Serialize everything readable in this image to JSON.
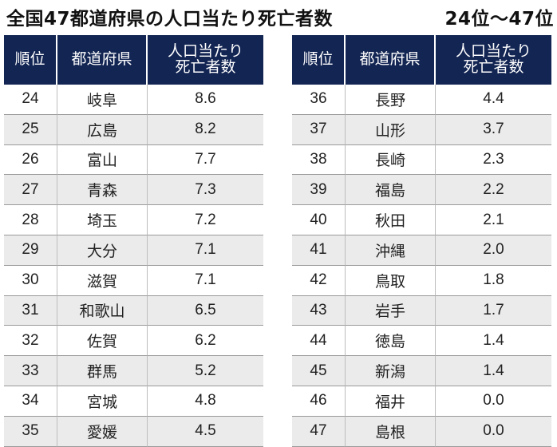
{
  "title": "全国47都道府県の人口当たり死亡者数",
  "title_range": "24位～47位",
  "headers": {
    "rank": "順位",
    "prefecture": "都道府県",
    "deaths_line1": "人口当たり",
    "deaths_line2": "死亡者数"
  },
  "colors": {
    "header_bg": "#132553",
    "stripe": "#ebebeb"
  },
  "left_rows": [
    {
      "rank": "24",
      "prefecture": "岐阜",
      "value": "8.6"
    },
    {
      "rank": "25",
      "prefecture": "広島",
      "value": "8.2"
    },
    {
      "rank": "26",
      "prefecture": "富山",
      "value": "7.7"
    },
    {
      "rank": "27",
      "prefecture": "青森",
      "value": "7.3"
    },
    {
      "rank": "28",
      "prefecture": "埼玉",
      "value": "7.2"
    },
    {
      "rank": "29",
      "prefecture": "大分",
      "value": "7.1"
    },
    {
      "rank": "30",
      "prefecture": "滋賀",
      "value": "7.1"
    },
    {
      "rank": "31",
      "prefecture": "和歌山",
      "value": "6.5"
    },
    {
      "rank": "32",
      "prefecture": "佐賀",
      "value": "6.2"
    },
    {
      "rank": "33",
      "prefecture": "群馬",
      "value": "5.2"
    },
    {
      "rank": "34",
      "prefecture": "宮城",
      "value": "4.8"
    },
    {
      "rank": "35",
      "prefecture": "愛媛",
      "value": "4.5"
    }
  ],
  "right_rows": [
    {
      "rank": "36",
      "prefecture": "長野",
      "value": "4.4"
    },
    {
      "rank": "37",
      "prefecture": "山形",
      "value": "3.7"
    },
    {
      "rank": "38",
      "prefecture": "長崎",
      "value": "2.3"
    },
    {
      "rank": "39",
      "prefecture": "福島",
      "value": "2.2"
    },
    {
      "rank": "40",
      "prefecture": "秋田",
      "value": "2.1"
    },
    {
      "rank": "41",
      "prefecture": "沖縄",
      "value": "2.0"
    },
    {
      "rank": "42",
      "prefecture": "鳥取",
      "value": "1.8"
    },
    {
      "rank": "43",
      "prefecture": "岩手",
      "value": "1.7"
    },
    {
      "rank": "44",
      "prefecture": "徳島",
      "value": "1.4"
    },
    {
      "rank": "45",
      "prefecture": "新潟",
      "value": "1.4"
    },
    {
      "rank": "46",
      "prefecture": "福井",
      "value": "0.0"
    },
    {
      "rank": "47",
      "prefecture": "島根",
      "value": "0.0"
    }
  ]
}
